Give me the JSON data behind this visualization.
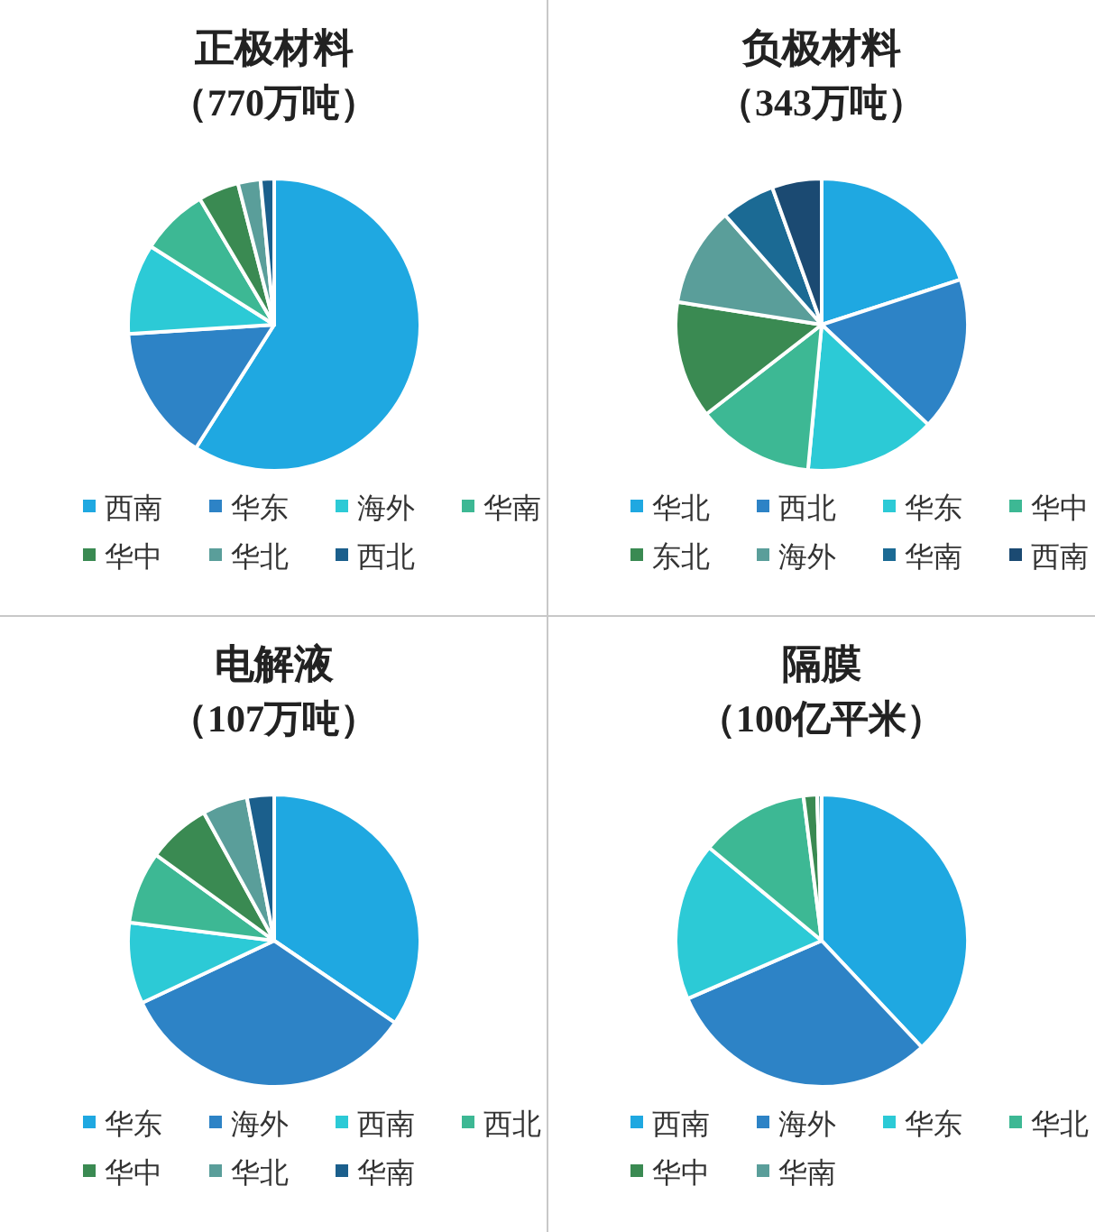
{
  "chart_data": [
    {
      "type": "pie",
      "title": "正极材料",
      "subtitle": "（770万吨）",
      "legend": "bottom",
      "categories": [
        "西南",
        "华东",
        "海外",
        "华南",
        "华中",
        "华北",
        "西北"
      ],
      "values": [
        59,
        15,
        10,
        7.5,
        4.5,
        2.5,
        1.5
      ],
      "colors": [
        "#1fa8e1",
        "#2d83c6",
        "#2ccad6",
        "#3db894",
        "#3a8a52",
        "#5a9e9a",
        "#1b5f8c"
      ]
    },
    {
      "type": "pie",
      "title": "负极材料",
      "subtitle": "（343万吨）",
      "legend": "bottom",
      "categories": [
        "华北",
        "西北",
        "华东",
        "华中",
        "东北",
        "海外",
        "华南",
        "西南"
      ],
      "values": [
        20,
        17,
        14.5,
        13,
        13,
        11,
        6,
        5.5
      ],
      "colors": [
        "#1fa8e1",
        "#2d83c6",
        "#2ccad6",
        "#3db894",
        "#3a8a52",
        "#5a9e9a",
        "#1b6a94",
        "#1b4a72"
      ]
    },
    {
      "type": "pie",
      "title": "电解液",
      "subtitle": "（107万吨）",
      "legend": "bottom",
      "categories": [
        "华东",
        "海外",
        "西南",
        "西北",
        "华中",
        "华北",
        "华南"
      ],
      "values": [
        34.5,
        33.5,
        9,
        8,
        7,
        5,
        3
      ],
      "colors": [
        "#1fa8e1",
        "#2d83c6",
        "#2ccad6",
        "#3db894",
        "#3a8a52",
        "#5a9e9a",
        "#1b5f8c"
      ]
    },
    {
      "type": "pie",
      "title": "隔膜",
      "subtitle": "（100亿平米）",
      "legend": "bottom",
      "categories": [
        "西南",
        "海外",
        "华东",
        "华北",
        "华中",
        "华南"
      ],
      "values": [
        38,
        30.5,
        17.5,
        12,
        1.5,
        0.5
      ],
      "colors": [
        "#1fa8e1",
        "#2d83c6",
        "#2ccad6",
        "#3db894",
        "#3a8a52",
        "#5a9e9a"
      ]
    }
  ]
}
